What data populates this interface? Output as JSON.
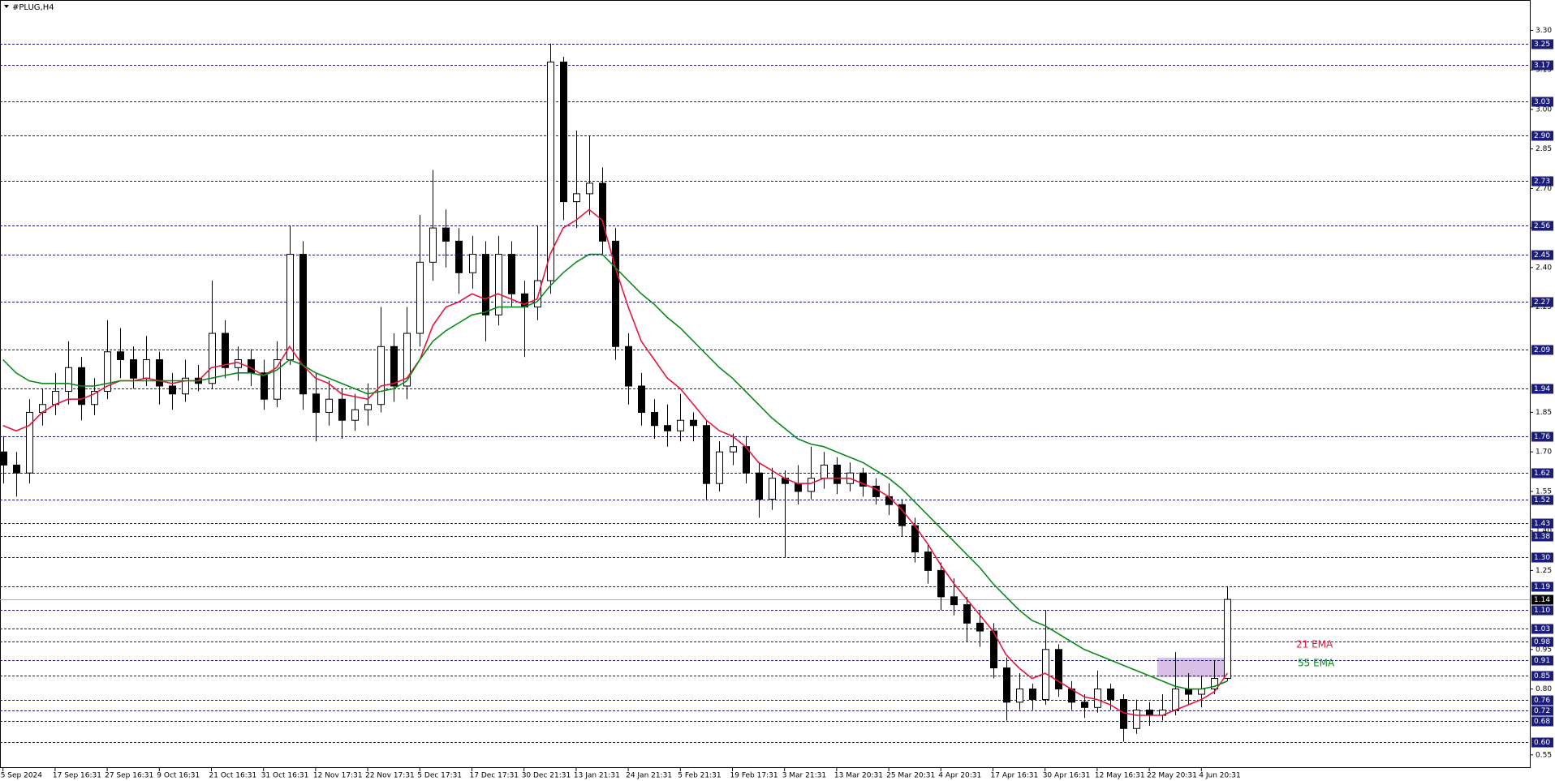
{
  "chart_data": {
    "type": "candlestick",
    "title": "#PLUG,H4",
    "categories": [
      "5 Sep 2024",
      null,
      null,
      null,
      "17 Sep 16:31",
      null,
      null,
      null,
      "27 Sep 16:31",
      null,
      null,
      null,
      "9 Oct 16:31",
      null,
      null,
      null,
      "21 Oct 16:31",
      null,
      null,
      null,
      "31 Oct 16:31",
      null,
      null,
      null,
      "12 Nov 17:31",
      null,
      null,
      null,
      "22 Nov 17:31",
      null,
      null,
      null,
      "5 Dec 17:31",
      null,
      null,
      null,
      "17 Dec 17:31",
      null,
      null,
      null,
      "30 Dec 21:31",
      null,
      null,
      null,
      "13 Jan 21:31",
      null,
      null,
      null,
      "24 Jan 21:31",
      null,
      null,
      null,
      "5 Feb 21:31",
      null,
      null,
      null,
      "19 Feb 17:31",
      null,
      null,
      null,
      "3 Mar 21:31",
      null,
      null,
      null,
      "13 Mar 20:31",
      null,
      null,
      null,
      "25 Mar 20:31",
      null,
      null,
      null,
      "4 Apr 20:31",
      null,
      null,
      null,
      "17 Apr 16:31",
      null,
      null,
      null,
      "30 Apr 16:31",
      null,
      null,
      null,
      "12 May 16:31",
      null,
      null,
      null,
      "22 May 20:31",
      null,
      null,
      null,
      "4 Jun 20:31",
      null,
      null
    ],
    "open": [
      1.7,
      1.65,
      1.62,
      1.85,
      1.88,
      1.93,
      2.02,
      1.88,
      1.93,
      2.08,
      2.05,
      1.98,
      2.05,
      1.95,
      1.92,
      1.98,
      1.96,
      2.15,
      2.02,
      2.05,
      2.0,
      1.9,
      2.05,
      2.45,
      1.92,
      1.85,
      1.9,
      1.82,
      1.86,
      1.88,
      2.1,
      1.95,
      2.15,
      2.42,
      2.55,
      2.5,
      2.38,
      2.45,
      2.22,
      2.45,
      2.3,
      2.25,
      2.35,
      3.18,
      2.65,
      2.68,
      2.72,
      2.5,
      2.1,
      1.95,
      1.85,
      1.8,
      1.78,
      1.82,
      1.8,
      1.58,
      1.7,
      1.72,
      1.62,
      1.52,
      1.6,
      1.58,
      1.55,
      1.6,
      1.65,
      1.58,
      1.62,
      1.57,
      1.53,
      1.5,
      1.42,
      1.32,
      1.25,
      1.15,
      1.12,
      1.05,
      1.02,
      0.88,
      0.75,
      0.8,
      0.76,
      0.95,
      0.8,
      0.75,
      0.73,
      0.8,
      0.76,
      0.65,
      0.72,
      0.7,
      0.72,
      0.8,
      0.78,
      0.8,
      0.84
    ],
    "high": [
      1.76,
      1.7,
      1.9,
      1.94,
      2.0,
      2.12,
      2.06,
      1.98,
      2.2,
      2.17,
      2.1,
      2.14,
      2.08,
      2.0,
      2.05,
      2.03,
      2.35,
      2.2,
      2.1,
      2.09,
      2.05,
      2.12,
      2.56,
      2.5,
      2.0,
      1.97,
      1.94,
      1.92,
      1.96,
      2.25,
      2.15,
      2.25,
      2.6,
      2.77,
      2.62,
      2.55,
      2.52,
      2.5,
      2.52,
      2.5,
      2.35,
      2.56,
      3.25,
      3.2,
      2.92,
      2.9,
      2.78,
      2.55,
      2.15,
      2.0,
      1.9,
      1.88,
      1.92,
      1.85,
      1.82,
      1.74,
      1.77,
      1.76,
      1.66,
      1.64,
      1.63,
      1.65,
      1.72,
      1.7,
      1.68,
      1.66,
      1.64,
      1.6,
      1.58,
      1.52,
      1.45,
      1.35,
      1.28,
      1.22,
      1.15,
      1.1,
      1.05,
      0.92,
      0.86,
      0.82,
      1.1,
      0.97,
      0.83,
      0.78,
      0.87,
      0.82,
      0.78,
      0.76,
      0.75,
      0.78,
      0.94,
      0.86,
      0.85,
      0.91,
      1.19
    ],
    "low": [
      1.58,
      1.53,
      1.58,
      1.8,
      1.84,
      1.88,
      1.82,
      1.84,
      1.9,
      1.98,
      1.94,
      1.95,
      1.88,
      1.86,
      1.89,
      1.93,
      1.94,
      1.98,
      1.97,
      1.95,
      1.86,
      1.87,
      2.03,
      1.86,
      1.74,
      1.8,
      1.75,
      1.78,
      1.8,
      1.85,
      1.89,
      1.9,
      2.1,
      2.35,
      2.4,
      2.3,
      2.32,
      2.12,
      2.18,
      2.25,
      2.06,
      2.2,
      2.3,
      2.58,
      2.55,
      2.6,
      2.45,
      2.05,
      1.88,
      1.8,
      1.75,
      1.72,
      1.74,
      1.74,
      1.52,
      1.55,
      1.65,
      1.58,
      1.45,
      1.48,
      1.3,
      1.5,
      1.52,
      1.56,
      1.54,
      1.55,
      1.53,
      1.5,
      1.46,
      1.38,
      1.28,
      1.2,
      1.1,
      1.08,
      0.98,
      0.96,
      0.84,
      0.68,
      0.72,
      0.72,
      0.74,
      0.77,
      0.72,
      0.69,
      0.71,
      0.72,
      0.6,
      0.63,
      0.66,
      0.68,
      0.7,
      0.74,
      0.73,
      0.78,
      0.83
    ],
    "close": [
      1.65,
      1.62,
      1.85,
      1.88,
      1.93,
      2.02,
      1.88,
      1.93,
      2.08,
      2.05,
      1.98,
      2.05,
      1.95,
      1.92,
      1.98,
      1.96,
      2.15,
      2.02,
      2.05,
      2.0,
      1.9,
      2.05,
      2.45,
      1.92,
      1.85,
      1.9,
      1.82,
      1.86,
      1.88,
      2.1,
      1.95,
      2.15,
      2.42,
      2.55,
      2.5,
      2.38,
      2.45,
      2.22,
      2.45,
      2.3,
      2.25,
      2.35,
      3.18,
      2.65,
      2.68,
      2.72,
      2.5,
      2.1,
      1.95,
      1.85,
      1.8,
      1.78,
      1.82,
      1.8,
      1.58,
      1.7,
      1.72,
      1.62,
      1.52,
      1.6,
      1.58,
      1.55,
      1.6,
      1.65,
      1.58,
      1.62,
      1.57,
      1.53,
      1.5,
      1.42,
      1.32,
      1.25,
      1.15,
      1.12,
      1.05,
      1.02,
      0.88,
      0.75,
      0.8,
      0.76,
      0.95,
      0.8,
      0.75,
      0.73,
      0.8,
      0.76,
      0.65,
      0.72,
      0.7,
      0.72,
      0.8,
      0.78,
      0.8,
      0.84,
      1.14
    ],
    "series": [
      {
        "name": "21 EMA",
        "color": "#e8163c",
        "values": [
          1.8,
          1.78,
          1.8,
          1.85,
          1.88,
          1.9,
          1.9,
          1.92,
          1.95,
          1.97,
          1.97,
          1.98,
          1.97,
          1.96,
          1.97,
          1.97,
          2.02,
          2.03,
          2.04,
          2.02,
          1.99,
          2.02,
          2.1,
          2.03,
          1.98,
          1.96,
          1.92,
          1.91,
          1.9,
          1.95,
          1.96,
          1.98,
          2.05,
          2.18,
          2.25,
          2.27,
          2.3,
          2.28,
          2.3,
          2.28,
          2.26,
          2.28,
          2.45,
          2.55,
          2.58,
          2.62,
          2.58,
          2.4,
          2.25,
          2.12,
          2.05,
          1.98,
          1.94,
          1.88,
          1.82,
          1.78,
          1.76,
          1.72,
          1.66,
          1.63,
          1.6,
          1.58,
          1.58,
          1.6,
          1.6,
          1.6,
          1.58,
          1.56,
          1.53,
          1.48,
          1.42,
          1.35,
          1.27,
          1.2,
          1.14,
          1.08,
          1.02,
          0.93,
          0.88,
          0.84,
          0.86,
          0.83,
          0.8,
          0.77,
          0.76,
          0.74,
          0.71,
          0.7,
          0.7,
          0.7,
          0.72,
          0.74,
          0.76,
          0.79,
          0.86
        ]
      },
      {
        "name": "55 EMA",
        "color": "#0a8a1a",
        "values": [
          2.05,
          2.0,
          1.97,
          1.96,
          1.96,
          1.96,
          1.95,
          1.95,
          1.96,
          1.97,
          1.97,
          1.97,
          1.97,
          1.97,
          1.97,
          1.97,
          1.98,
          1.99,
          2.0,
          2.0,
          1.99,
          2.01,
          2.05,
          2.03,
          2.0,
          1.98,
          1.96,
          1.94,
          1.92,
          1.93,
          1.94,
          1.97,
          2.05,
          2.12,
          2.16,
          2.19,
          2.22,
          2.23,
          2.25,
          2.25,
          2.25,
          2.27,
          2.33,
          2.38,
          2.42,
          2.45,
          2.45,
          2.4,
          2.35,
          2.3,
          2.26,
          2.21,
          2.17,
          2.12,
          2.07,
          2.02,
          1.98,
          1.93,
          1.88,
          1.83,
          1.79,
          1.75,
          1.73,
          1.72,
          1.7,
          1.68,
          1.66,
          1.63,
          1.6,
          1.56,
          1.51,
          1.46,
          1.41,
          1.36,
          1.31,
          1.26,
          1.2,
          1.15,
          1.1,
          1.06,
          1.04,
          1.01,
          0.98,
          0.95,
          0.93,
          0.91,
          0.89,
          0.87,
          0.85,
          0.83,
          0.81,
          0.8,
          0.8,
          0.81,
          0.83
        ]
      }
    ],
    "ylim": [
      0.5,
      3.4
    ],
    "yticks": [
      {
        "value": 3.3,
        "label": "3.30"
      },
      3.15,
      {
        "value": 3.0,
        "label": "3.00"
      },
      2.85,
      {
        "value": 2.7,
        "label": "2.70"
      },
      2.55,
      {
        "value": 2.4,
        "label": "2.40"
      },
      2.25,
      1.85,
      {
        "value": 1.7,
        "label": "1.70"
      },
      1.55,
      {
        "value": 1.4,
        "label": "1.40"
      },
      1.25,
      0.95,
      {
        "value": 0.8,
        "label": "0.80"
      },
      0.55
    ],
    "levels": [
      3.25,
      3.17,
      3.03,
      {
        "value": 2.9,
        "label": "2.90"
      },
      2.73,
      2.56,
      2.45,
      2.27,
      2.09,
      1.94,
      1.76,
      1.62,
      1.52,
      1.43,
      1.38,
      {
        "value": 1.3,
        "label": "1.30"
      },
      1.19,
      {
        "value": 1.1,
        "label": "1.10"
      },
      1.03,
      0.98,
      0.91,
      0.85,
      0.76,
      0.72,
      0.68,
      {
        "value": 0.6,
        "label": "0.60"
      }
    ],
    "current_price": 1.14,
    "bull_color": "#ffffff",
    "bear_color": "#000000",
    "level_color": "#1c1c7a"
  }
}
